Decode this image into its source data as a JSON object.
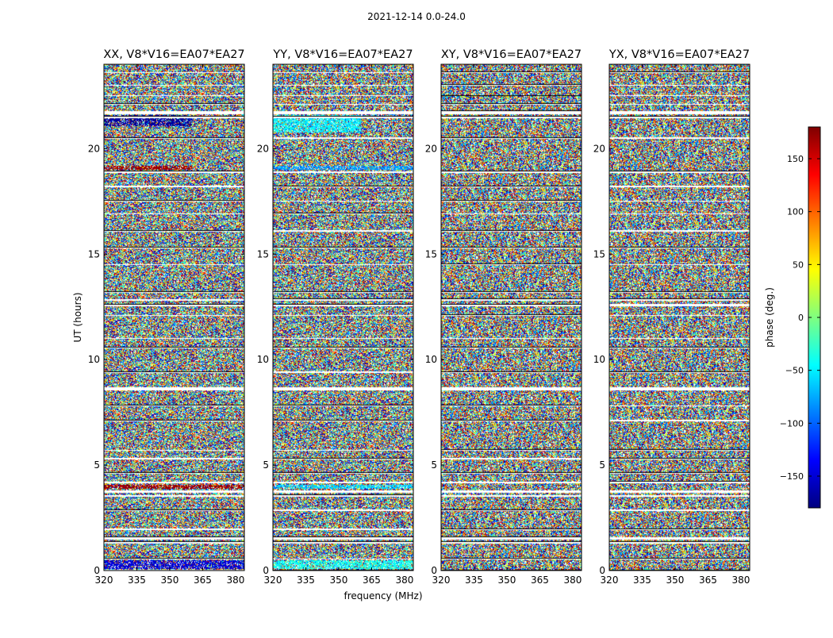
{
  "figure": {
    "suptitle": "2021-12-14 0.0-24.0",
    "xlabel": "frequency (MHz)",
    "ylabel": "UT (hours)"
  },
  "chart_data": [
    {
      "type": "heatmap",
      "title": "XX, V8*V16=EA07*EA27",
      "x_ticks": [
        320,
        335,
        350,
        365,
        380
      ],
      "y_ticks": [
        0,
        5,
        10,
        15,
        20
      ],
      "xlim": [
        320,
        384
      ],
      "ylim": [
        0,
        24
      ],
      "value": "phase (deg.)",
      "features": [
        {
          "x": [
            320,
            360
          ],
          "y": [
            21.1,
            21.6
          ],
          "phase": -170
        },
        {
          "x": [
            320,
            360
          ],
          "y": [
            19.0,
            19.2
          ],
          "phase": 170
        },
        {
          "x": [
            320,
            384
          ],
          "y": [
            3.9,
            4.1
          ],
          "phase": 170
        },
        {
          "x": [
            320,
            384
          ],
          "y": [
            0.1,
            0.5
          ],
          "phase": -150
        }
      ]
    },
    {
      "type": "heatmap",
      "title": "YY, V8*V16=EA07*EA27",
      "x_ticks": [
        320,
        335,
        350,
        365,
        380
      ],
      "y_ticks": [
        0,
        5,
        10,
        15,
        20
      ],
      "xlim": [
        320,
        384
      ],
      "ylim": [
        0,
        24
      ],
      "value": "phase (deg.)",
      "features": [
        {
          "x": [
            320,
            360
          ],
          "y": [
            20.8,
            21.6
          ],
          "phase": -50
        },
        {
          "x": [
            320,
            384
          ],
          "y": [
            19.0,
            19.2
          ],
          "phase": -80
        },
        {
          "x": [
            320,
            384
          ],
          "y": [
            3.9,
            4.1
          ],
          "phase": -60
        },
        {
          "x": [
            320,
            384
          ],
          "y": [
            0.1,
            0.5
          ],
          "phase": -40
        }
      ]
    },
    {
      "type": "heatmap",
      "title": "XY, V8*V16=EA07*EA27",
      "x_ticks": [
        320,
        335,
        350,
        365,
        380
      ],
      "y_ticks": [
        0,
        5,
        10,
        15,
        20
      ],
      "xlim": [
        320,
        384
      ],
      "ylim": [
        0,
        24
      ],
      "value": "phase (deg.)",
      "features": []
    },
    {
      "type": "heatmap",
      "title": "YX, V8*V16=EA07*EA27",
      "x_ticks": [
        320,
        335,
        350,
        365,
        380
      ],
      "y_ticks": [
        0,
        5,
        10,
        15,
        20
      ],
      "xlim": [
        320,
        384
      ],
      "ylim": [
        0,
        24
      ],
      "value": "phase (deg.)",
      "features": []
    }
  ],
  "flagged_hours": [
    [
      0.0,
      0.05
    ],
    [
      0.55,
      0.6
    ],
    [
      1.3,
      1.4
    ],
    [
      1.5,
      1.6
    ],
    [
      1.95,
      2.0
    ],
    [
      2.85,
      2.9
    ],
    [
      3.5,
      3.6
    ],
    [
      3.7,
      3.8
    ],
    [
      4.15,
      4.25
    ],
    [
      4.6,
      4.65
    ],
    [
      5.3,
      5.35
    ],
    [
      5.7,
      5.75
    ],
    [
      7.1,
      7.15
    ],
    [
      7.8,
      7.85
    ],
    [
      8.55,
      8.7
    ],
    [
      9.4,
      9.45
    ],
    [
      10.55,
      10.6
    ],
    [
      11.0,
      11.05
    ],
    [
      12.1,
      12.15
    ],
    [
      12.55,
      12.65
    ],
    [
      12.8,
      12.9
    ],
    [
      13.2,
      13.25
    ],
    [
      14.5,
      14.55
    ],
    [
      15.3,
      15.35
    ],
    [
      16.1,
      16.15
    ],
    [
      16.9,
      16.95
    ],
    [
      17.5,
      17.55
    ],
    [
      18.2,
      18.25
    ],
    [
      18.85,
      18.95
    ],
    [
      20.5,
      20.55
    ],
    [
      21.45,
      21.55
    ],
    [
      21.65,
      21.8
    ],
    [
      22.1,
      22.15
    ],
    [
      22.5,
      22.55
    ],
    [
      23.0,
      23.05
    ],
    [
      23.6,
      23.65
    ]
  ],
  "colorbar": {
    "label": "phase (deg.)",
    "range": [
      -180,
      180
    ],
    "ticks": [
      -150,
      -100,
      -50,
      0,
      50,
      100,
      150
    ],
    "tick_labels": [
      "−150",
      "−100",
      "−50",
      "0",
      "50",
      "100",
      "150"
    ],
    "colormap": "jet",
    "colors": [
      "#00007f",
      "#0000ff",
      "#007fff",
      "#00ffff",
      "#7fff7f",
      "#ffff00",
      "#ff7f00",
      "#ff0000",
      "#7f0000"
    ]
  }
}
